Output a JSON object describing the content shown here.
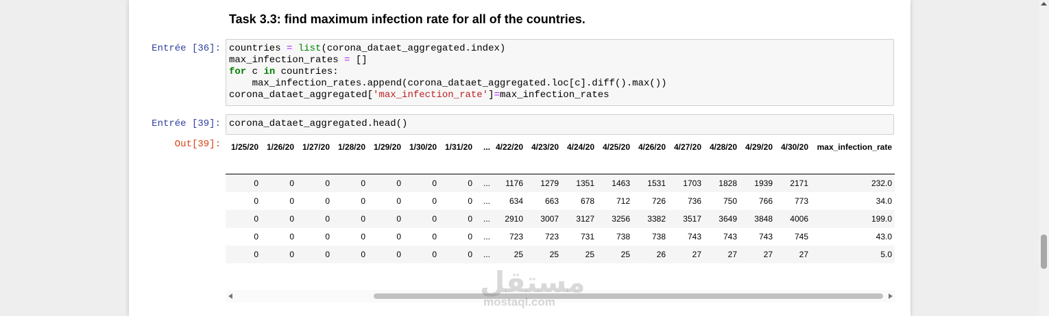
{
  "heading": "Task 3.3: find maximum infection rate for all of the countries.",
  "cells": [
    {
      "prompt": "Entrée [36]:",
      "lines": [
        [
          "countries ",
          "=",
          " ",
          "list",
          "(corona_dataet_aggregated.index)"
        ],
        [
          "max_infection_rates ",
          "=",
          " []"
        ],
        [
          "for",
          " c ",
          "in",
          " countries:"
        ],
        [
          "    max_infection_rates.append(corona_dataet_aggregated.loc[c].diff().max())"
        ],
        [
          "corona_dataet_aggregated[",
          "'max_infection_rate'",
          "]",
          "=",
          "max_infection_rates"
        ]
      ]
    },
    {
      "prompt": "Entrée [39]:",
      "lines": [
        [
          "corona_dataet_aggregated.head()"
        ]
      ]
    }
  ],
  "output": {
    "prompt": "Out[39]:",
    "table": {
      "header": [
        "1/25/20",
        "1/26/20",
        "1/27/20",
        "1/28/20",
        "1/29/20",
        "1/30/20",
        "1/31/20",
        "...",
        "4/22/20",
        "4/23/20",
        "4/24/20",
        "4/25/20",
        "4/26/20",
        "4/27/20",
        "4/28/20",
        "4/29/20",
        "4/30/20",
        "max_infection_rate"
      ],
      "rows": [
        [
          "0",
          "0",
          "0",
          "0",
          "0",
          "0",
          "0",
          "...",
          "1176",
          "1279",
          "1351",
          "1463",
          "1531",
          "1703",
          "1828",
          "1939",
          "2171",
          "232.0"
        ],
        [
          "0",
          "0",
          "0",
          "0",
          "0",
          "0",
          "0",
          "...",
          "634",
          "663",
          "678",
          "712",
          "726",
          "736",
          "750",
          "766",
          "773",
          "34.0"
        ],
        [
          "0",
          "0",
          "0",
          "0",
          "0",
          "0",
          "0",
          "...",
          "2910",
          "3007",
          "3127",
          "3256",
          "3382",
          "3517",
          "3649",
          "3848",
          "4006",
          "199.0"
        ],
        [
          "0",
          "0",
          "0",
          "0",
          "0",
          "0",
          "0",
          "...",
          "723",
          "723",
          "731",
          "738",
          "738",
          "743",
          "743",
          "743",
          "745",
          "43.0"
        ],
        [
          "0",
          "0",
          "0",
          "0",
          "0",
          "0",
          "0",
          "...",
          "25",
          "25",
          "25",
          "25",
          "26",
          "27",
          "27",
          "27",
          "27",
          "5.0"
        ]
      ]
    }
  },
  "watermark": {
    "arabic": "مستقل",
    "latin": "mostaql.com"
  }
}
